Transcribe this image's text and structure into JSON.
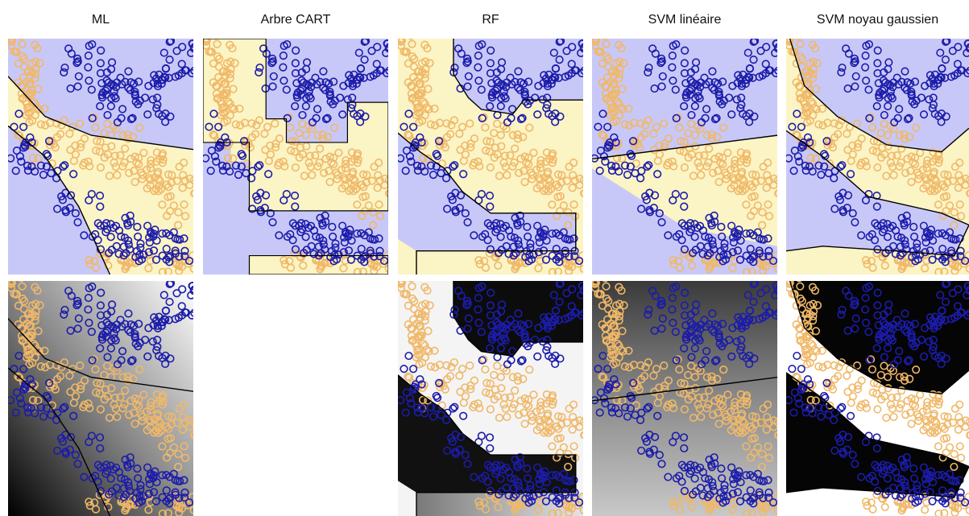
{
  "figure": {
    "columns": [
      {
        "key": "ml",
        "title": "ML",
        "has_probability_row": true
      },
      {
        "key": "cart",
        "title": "Arbre CART",
        "has_probability_row": false
      },
      {
        "key": "rf",
        "title": "RF",
        "has_probability_row": true
      },
      {
        "key": "svm_lin",
        "title": "SVM linéaire",
        "has_probability_row": true
      },
      {
        "key": "svm_rbf",
        "title": "SVM noyau gaussien",
        "has_probability_row": true
      }
    ],
    "colors": {
      "class_a_marker": "#1c1caa",
      "class_b_marker": "#f0b868",
      "region_a": "#c8c8f8",
      "region_b": "#fbf4c4",
      "boundary": "#000000",
      "prob_dark": "#000000",
      "prob_light": "#ffffff"
    }
  },
  "chart_data": {
    "type": "scatter",
    "description_rows": [
      "decision regions",
      "class probability (grayscale)"
    ],
    "xlim": [
      0,
      1
    ],
    "ylim": [
      0,
      1
    ],
    "grid": false,
    "classes": [
      {
        "name": "",
        "color": "#1c1caa",
        "marker": "ring"
      },
      {
        "name": "",
        "color": "#f0b868",
        "marker": "ring"
      }
    ],
    "spirals": {
      "class_a": {
        "center": [
          0.5,
          0.5
        ],
        "shape": "two crescents"
      },
      "class_b": {
        "center": [
          0.5,
          0.5
        ],
        "shape": "band between crescents"
      }
    },
    "boundaries": {
      "ml": [
        [
          [
            0.0,
            0.84
          ],
          [
            0.2,
            0.67
          ],
          [
            0.45,
            0.59
          ],
          [
            1.0,
            0.53
          ]
        ],
        [
          [
            0.0,
            0.63
          ],
          [
            0.2,
            0.5
          ],
          [
            0.38,
            0.29
          ],
          [
            0.55,
            0.0
          ]
        ]
      ],
      "svm_lin": [
        [
          [
            0.0,
            0.49
          ],
          [
            1.0,
            0.59
          ]
        ]
      ],
      "svm_rbf": [
        [
          [
            0.02,
            1.0
          ],
          [
            0.1,
            0.8
          ],
          [
            0.28,
            0.67
          ],
          [
            0.55,
            0.55
          ],
          [
            0.85,
            0.52
          ],
          [
            1.0,
            0.62
          ]
        ],
        [
          [
            0.0,
            0.61
          ],
          [
            0.2,
            0.5
          ],
          [
            0.45,
            0.33
          ],
          [
            0.85,
            0.26
          ],
          [
            1.0,
            0.21
          ],
          [
            0.92,
            0.08
          ],
          [
            0.6,
            0.1
          ],
          [
            0.2,
            0.12
          ],
          [
            0.0,
            0.1
          ]
        ]
      ]
    }
  }
}
